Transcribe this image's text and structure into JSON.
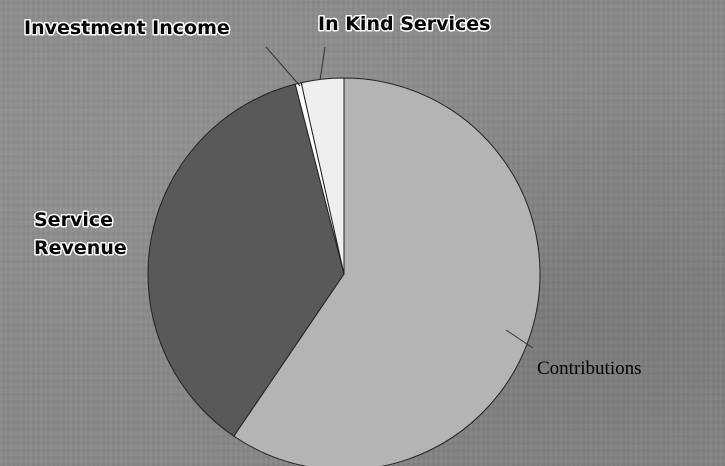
{
  "chart_data": {
    "type": "pie",
    "title": "",
    "series": [
      {
        "labels": [
          "Contributions",
          "Service Revenue",
          "Investment Income",
          "In Kind Services"
        ],
        "values": [
          59.5,
          36.5,
          0.5,
          3.5
        ],
        "colors": [
          "#b4b4b4",
          "#595959",
          "#ffffff",
          "#efefef"
        ]
      }
    ],
    "label_lines": {
      "Service Revenue": [
        "Service",
        "Revenue"
      ]
    },
    "start_angle": "12 o'clock, clockwise",
    "legend": "none"
  }
}
